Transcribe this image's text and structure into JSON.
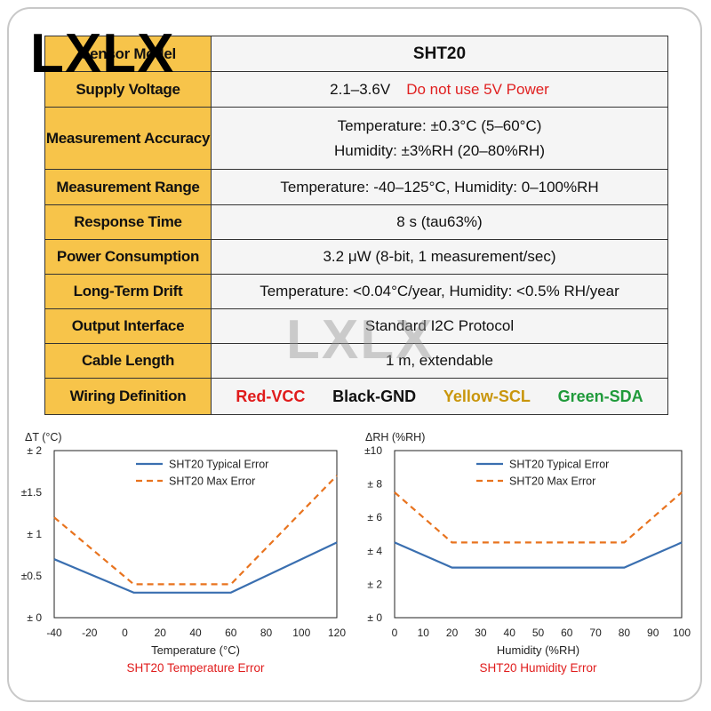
{
  "logo": "LXLX",
  "watermark": "LXLX",
  "spec_table": {
    "rows": [
      {
        "label": "Sensor Model",
        "value": "SHT20"
      },
      {
        "label": "Supply Voltage",
        "value": "2.1–3.6V",
        "warning": "Do not use 5V Power"
      },
      {
        "label": "Measurement Accuracy",
        "value_lines": [
          "Temperature: ±0.3°C (5–60°C)",
          "Humidity: ±3%RH (20–80%RH)"
        ]
      },
      {
        "label": "Measurement Range",
        "value": "Temperature: -40–125°C, Humidity: 0–100%RH"
      },
      {
        "label": "Response Time",
        "value": "8 s (tau63%)"
      },
      {
        "label": "Power Consumption",
        "value": "3.2 μW (8-bit, 1 measurement/sec)"
      },
      {
        "label": "Long-Term Drift",
        "value": "Temperature: <0.04°C/year, Humidity: <0.5% RH/year"
      },
      {
        "label": "Output Interface",
        "value": "Standard I2C Protocol"
      },
      {
        "label": "Cable Length",
        "value": "1 m, extendable"
      },
      {
        "label": "Wiring Definition",
        "wires": [
          {
            "text": "Red-VCC",
            "color": "#e01b1b"
          },
          {
            "text": "Black-GND",
            "color": "#111111"
          },
          {
            "text": "Yellow-SCL",
            "color": "#c9960c"
          },
          {
            "text": "Green-SDA",
            "color": "#1f9a3a"
          }
        ]
      }
    ]
  },
  "colors": {
    "typical": "#3a6fb0",
    "max": "#e8731e",
    "caption": "#e01b1b",
    "header_fill": "#f7c44a"
  },
  "chart_data": [
    {
      "type": "line",
      "title": "SHT20 Temperature Error",
      "xlabel": "Temperature (°C)",
      "ylabel": "ΔT (°C)",
      "xlim": [
        -40,
        120
      ],
      "ylim": [
        0,
        2
      ],
      "xticks": [
        "-40",
        "-20",
        "0",
        "20",
        "40",
        "60",
        "80",
        "100",
        "120"
      ],
      "yticks": [
        "± 0",
        "±0.5",
        "± 1",
        "±1.5",
        "± 2"
      ],
      "legend": "top-right",
      "series": [
        {
          "name": "SHT20 Typical Error",
          "x": [
            -40,
            5,
            60,
            120
          ],
          "y": [
            0.7,
            0.3,
            0.3,
            0.9
          ]
        },
        {
          "name": "SHT20 Max Error",
          "x": [
            -40,
            5,
            60,
            120
          ],
          "y": [
            1.2,
            0.4,
            0.4,
            1.7
          ]
        }
      ]
    },
    {
      "type": "line",
      "title": "SHT20 Humidity Error",
      "xlabel": "Humidity (%RH)",
      "ylabel": "ΔRH (%RH)",
      "xlim": [
        0,
        100
      ],
      "ylim": [
        0,
        10
      ],
      "xticks": [
        "0",
        "10",
        "20",
        "30",
        "40",
        "50",
        "60",
        "70",
        "80",
        "90",
        "100"
      ],
      "yticks": [
        "± 0",
        "± 2",
        "± 4",
        "± 6",
        "± 8",
        "±10"
      ],
      "legend": "top-right",
      "series": [
        {
          "name": "SHT20 Typical Error",
          "x": [
            0,
            20,
            80,
            100
          ],
          "y": [
            4.5,
            3.0,
            3.0,
            4.5
          ]
        },
        {
          "name": "SHT20 Max Error",
          "x": [
            0,
            20,
            80,
            100
          ],
          "y": [
            7.5,
            4.5,
            4.5,
            7.5
          ]
        }
      ]
    }
  ]
}
